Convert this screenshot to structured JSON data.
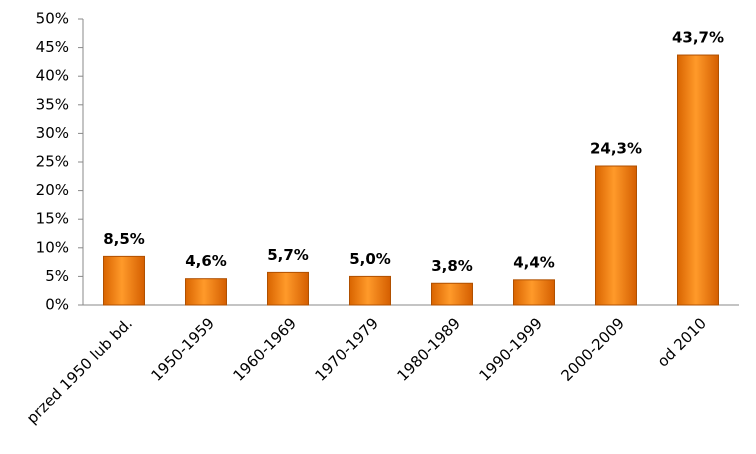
{
  "chart_data": {
    "type": "bar",
    "categories": [
      "przed 1950 lub bd.",
      "1950-1959",
      "1960-1969",
      "1970-1979",
      "1980-1989",
      "1990-1999",
      "2000-2009",
      "od 2010"
    ],
    "values": [
      8.5,
      4.6,
      5.7,
      5.0,
      3.8,
      4.4,
      24.3,
      43.7
    ],
    "value_labels": [
      "8,5%",
      "4,6%",
      "5,7%",
      "5,0%",
      "3,8%",
      "4,4%",
      "24,3%",
      "43,7%"
    ],
    "color": "#f57c00",
    "ylim": [
      0,
      50
    ],
    "yticks": [
      {
        "value": 0,
        "label": "0%"
      },
      {
        "value": 5,
        "label": "5%"
      },
      {
        "value": 10,
        "label": "10%"
      },
      {
        "value": 15,
        "label": "15%"
      },
      {
        "value": 20,
        "label": "20%"
      },
      {
        "value": 25,
        "label": "25%"
      },
      {
        "value": 30,
        "label": "30%"
      },
      {
        "value": 35,
        "label": "35%"
      },
      {
        "value": 40,
        "label": "40%"
      },
      {
        "value": 45,
        "label": "45%"
      },
      {
        "value": 50,
        "label": "50%"
      }
    ],
    "grid": false
  }
}
